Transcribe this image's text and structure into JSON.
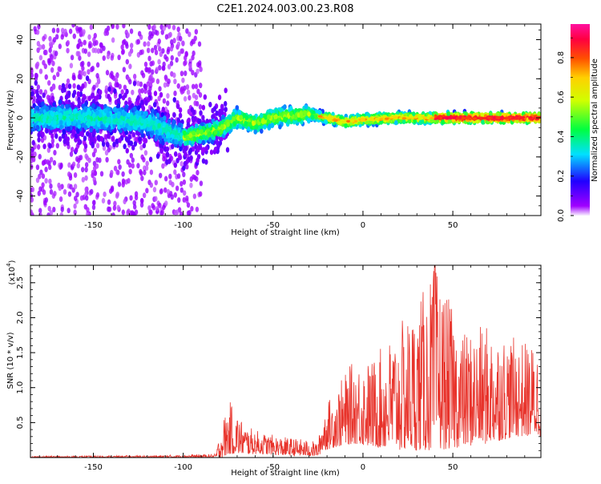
{
  "title": "C2E1.2024.003.00.23.R08",
  "colors": {
    "snr_line": "#e8332b",
    "spectrogram_bg": "#ffffff",
    "axis": "#000000"
  },
  "chart_data": [
    {
      "type": "heatmap",
      "name": "spectrogram",
      "xlabel": "Height of straight line (km)",
      "ylabel": "Frequency (Hz)",
      "xlim": [
        -185,
        99
      ],
      "ylim": [
        -50,
        48
      ],
      "xticks": [
        -150,
        -100,
        -50,
        0,
        50
      ],
      "yticks": [
        -40,
        -20,
        0,
        20,
        40
      ],
      "grid": false,
      "colorbar": {
        "label": "Normalized spectral amplitude",
        "range": [
          0.0,
          0.97
        ],
        "ticks": [
          "0.0",
          "0.2",
          "0.4",
          "0.6",
          "0.8"
        ],
        "colormap": "rainbow (purple-blue-cyan-green-yellow-orange-red-magenta)"
      },
      "band_center_hz": [
        {
          "x": -180,
          "f": 0
        },
        {
          "x": -150,
          "f": 0
        },
        {
          "x": -120,
          "f": -2
        },
        {
          "x": -100,
          "f": -10
        },
        {
          "x": -80,
          "f": -6
        },
        {
          "x": -70,
          "f": 0
        },
        {
          "x": -60,
          "f": -3
        },
        {
          "x": -50,
          "f": 0
        },
        {
          "x": -30,
          "f": 2
        },
        {
          "x": -10,
          "f": -2
        },
        {
          "x": 0,
          "f": -1
        },
        {
          "x": 20,
          "f": 0
        },
        {
          "x": 50,
          "f": 0
        },
        {
          "x": 99,
          "f": 0
        }
      ]
    },
    {
      "type": "line",
      "name": "snr",
      "xlabel": "Height of straight line (km)",
      "ylabel": "SNR (10 * v/v)",
      "y_multiplier": "(x10",
      "y_multiplier_exp": "4",
      "xlim": [
        -185,
        99
      ],
      "ylim": [
        0.0,
        2.75
      ],
      "xticks": [
        -150,
        -100,
        -50,
        0,
        50
      ],
      "yticks": [
        "0.5",
        "1.0",
        "1.5",
        "2.0",
        "2.5"
      ],
      "grid": false,
      "envelope": [
        {
          "x": -185,
          "low": 0.0,
          "high": 0.02
        },
        {
          "x": -120,
          "low": 0.0,
          "high": 0.03
        },
        {
          "x": -82,
          "low": 0.0,
          "high": 0.05
        },
        {
          "x": -78,
          "low": 0.0,
          "high": 0.55
        },
        {
          "x": -74,
          "low": 0.05,
          "high": 0.8
        },
        {
          "x": -65,
          "low": 0.05,
          "high": 0.45
        },
        {
          "x": -55,
          "low": 0.05,
          "high": 0.35
        },
        {
          "x": -45,
          "low": 0.03,
          "high": 0.3
        },
        {
          "x": -30,
          "low": 0.02,
          "high": 0.25
        },
        {
          "x": -25,
          "low": 0.02,
          "high": 0.22
        },
        {
          "x": -22,
          "low": 0.1,
          "high": 0.7
        },
        {
          "x": -15,
          "low": 0.15,
          "high": 1.0
        },
        {
          "x": -5,
          "low": 0.2,
          "high": 1.4
        },
        {
          "x": 5,
          "low": 0.15,
          "high": 1.4
        },
        {
          "x": 20,
          "low": 0.1,
          "high": 1.9
        },
        {
          "x": 30,
          "low": 0.1,
          "high": 2.2
        },
        {
          "x": 40,
          "low": 0.1,
          "high": 2.75
        },
        {
          "x": 55,
          "low": 0.15,
          "high": 1.8
        },
        {
          "x": 70,
          "low": 0.2,
          "high": 1.9
        },
        {
          "x": 85,
          "low": 0.3,
          "high": 1.7
        },
        {
          "x": 99,
          "low": 0.3,
          "high": 1.6
        }
      ]
    }
  ]
}
